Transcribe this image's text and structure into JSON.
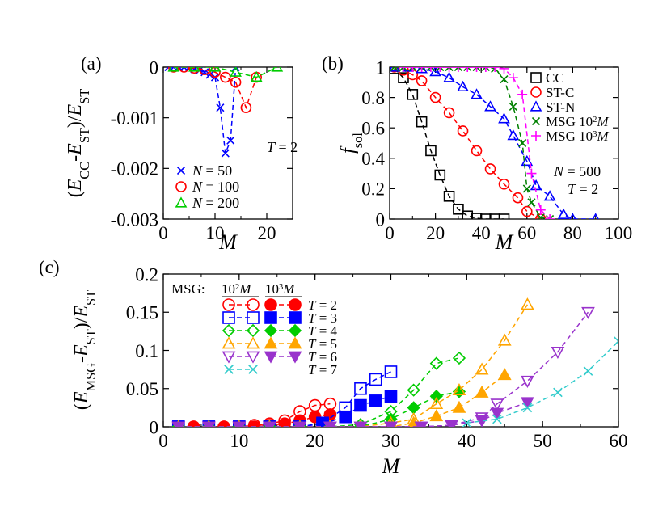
{
  "colors": {
    "black": "#000000",
    "red": "#ff0000",
    "blue": "#0000ff",
    "green": "#00cc00",
    "magenta": "#ff00ff",
    "darkgreen": "#008000",
    "orange": "#ffa500",
    "purple": "#9933cc",
    "cyan": "#33cccc"
  },
  "chart_data": [
    {
      "id": "a",
      "type": "line",
      "panel_label": "(a)",
      "xlabel": "M",
      "ylabel": {
        "open": "(",
        "e1": "E",
        "s1": "CC",
        "mid": "-",
        "e2": "E",
        "s2": "ST",
        "close": ")/",
        "e3": "E",
        "s3": "ST"
      },
      "xlim": [
        0,
        25
      ],
      "ylim": [
        -0.003,
        0
      ],
      "xticks": [
        0,
        10,
        20
      ],
      "xtick_labels": [
        "0",
        "10",
        "20"
      ],
      "yticks": [
        0,
        -0.001,
        -0.002,
        -0.003
      ],
      "ytick_labels": [
        "0",
        "-0.001",
        "-0.002",
        "-0.003"
      ],
      "annotation": {
        "t": "T",
        "rest": " = 2"
      },
      "series": [
        {
          "name": "N = 50",
          "label_sym": "N",
          "label_val": " = 50",
          "color": "#0000ff",
          "marker": "x",
          "x": [
            1,
            2,
            3,
            4,
            5,
            6,
            7,
            8,
            9,
            10,
            11,
            12,
            13,
            14
          ],
          "y": [
            0,
            0,
            0,
            0,
            0,
            -4e-05,
            -6e-05,
            -0.0001,
            -0.00015,
            -0.0002,
            -0.0008,
            -0.0017,
            -0.00145,
            0
          ]
        },
        {
          "name": "N = 100",
          "label_sym": "N",
          "label_val": " = 100",
          "color": "#ff0000",
          "marker": "circle",
          "x": [
            2,
            4,
            6,
            8,
            10,
            12,
            14,
            16,
            18
          ],
          "y": [
            0,
            0,
            -2e-05,
            -5e-05,
            -0.0001,
            -0.0002,
            -0.0003,
            -0.0008,
            -0.0002
          ]
        },
        {
          "name": "N = 200",
          "label_sym": "N",
          "label_val": " = 200",
          "color": "#00cc00",
          "marker": "triangle",
          "x": [
            2,
            6,
            10,
            14,
            18,
            22
          ],
          "y": [
            0,
            0,
            0,
            -0.0001,
            -0.0002,
            0
          ]
        }
      ]
    },
    {
      "id": "b",
      "type": "line",
      "panel_label": "(b)",
      "xlabel": "M",
      "ylabel": {
        "f": "f",
        "sub": "sol"
      },
      "xlim": [
        0,
        100
      ],
      "ylim": [
        0,
        1
      ],
      "xticks": [
        0,
        20,
        40,
        60,
        80,
        100
      ],
      "xtick_labels": [
        "0",
        "20",
        "40",
        "60",
        "80",
        "100"
      ],
      "yticks": [
        0,
        0.2,
        0.4,
        0.6,
        0.8,
        1
      ],
      "ytick_labels": [
        "0",
        "0.2",
        "0.4",
        "0.6",
        "0.8",
        "1"
      ],
      "annotation": {
        "n": "N",
        "n_rest": " = 500",
        "t": "T",
        "t_rest": " = 2"
      },
      "series": [
        {
          "name": "CC",
          "color": "#000000",
          "marker": "square",
          "x": [
            2,
            6,
            10,
            14,
            18,
            22,
            26,
            30,
            34,
            38,
            42,
            46,
            50
          ],
          "y": [
            0.99,
            0.93,
            0.82,
            0.64,
            0.45,
            0.29,
            0.15,
            0.065,
            0.02,
            0.005,
            0,
            0,
            0
          ]
        },
        {
          "name": "ST-C",
          "color": "#ff0000",
          "marker": "circle",
          "x": [
            2,
            6,
            10,
            14,
            20,
            26,
            32,
            38,
            44,
            50,
            56,
            60,
            66
          ],
          "y": [
            1,
            0.98,
            0.95,
            0.91,
            0.8,
            0.7,
            0.58,
            0.45,
            0.33,
            0.23,
            0.14,
            0.05,
            0
          ]
        },
        {
          "name": "ST-N",
          "color": "#0000ff",
          "marker": "triangle",
          "x": [
            2,
            8,
            14,
            20,
            26,
            32,
            38,
            44,
            50,
            54,
            60,
            64,
            70,
            76,
            80,
            90
          ],
          "y": [
            1,
            1,
            0.99,
            0.97,
            0.93,
            0.87,
            0.82,
            0.74,
            0.66,
            0.55,
            0.38,
            0.22,
            0.15,
            0.03,
            0,
            0
          ]
        },
        {
          "name": "MSG 10^2 M",
          "label_pre": "MSG 10",
          "label_sup": "2",
          "label_m": "M",
          "color": "#008000",
          "marker": "x",
          "x": [
            2,
            6,
            10,
            14,
            18,
            22,
            26,
            30,
            34,
            38,
            42,
            46,
            50,
            54,
            58,
            60,
            62,
            66,
            70
          ],
          "y": [
            1,
            1,
            1,
            1,
            1,
            1,
            1,
            1,
            1,
            1,
            1,
            0.99,
            0.92,
            0.74,
            0.5,
            0.2,
            0.11,
            0.01,
            0
          ]
        },
        {
          "name": "MSG 10^3 M",
          "label_pre": "MSG 10",
          "label_sup": "3",
          "label_m": "M",
          "color": "#ff00ff",
          "marker": "plus",
          "x": [
            6,
            10,
            14,
            18,
            22,
            26,
            30,
            34,
            38,
            42,
            46,
            50,
            54,
            58,
            62,
            66,
            70
          ],
          "y": [
            1,
            1,
            1,
            1,
            1,
            1,
            1,
            1,
            1,
            1,
            1,
            0.99,
            0.93,
            0.82,
            0.3,
            0.06,
            0
          ]
        }
      ]
    },
    {
      "id": "c",
      "type": "line",
      "panel_label": "(c)",
      "xlabel": "M",
      "ylabel": {
        "open": "(",
        "e1": "E",
        "s1": "MSG",
        "mid": "-",
        "e2": "E",
        "s2": "ST",
        "close": ")/",
        "e3": "E",
        "s3": "ST"
      },
      "xlim": [
        0,
        60
      ],
      "ylim": [
        0,
        0.2
      ],
      "xticks": [
        0,
        10,
        20,
        30,
        40,
        50,
        60
      ],
      "xtick_labels": [
        "0",
        "10",
        "20",
        "30",
        "40",
        "50",
        "60"
      ],
      "yticks": [
        0,
        0.05,
        0.1,
        0.15,
        0.2
      ],
      "ytick_labels": [
        "0",
        "0.05",
        "0.1",
        "0.15",
        "0.2"
      ],
      "legend": {
        "title": "MSG:",
        "col1_pre": "10",
        "col1_sup": "2",
        "col1_m": "M",
        "col2_pre": "10",
        "col2_sup": "3",
        "col2_m": "M"
      },
      "series": [
        {
          "name": "T = 2, 10^2 M",
          "row": 0,
          "label_sym": "T",
          "label_val": " = 2",
          "color": "#ff0000",
          "marker": "circle",
          "filled": false,
          "x": [
            2,
            4,
            6,
            8,
            10,
            12,
            14,
            16,
            18,
            20,
            22
          ],
          "y": [
            0,
            0,
            0,
            0,
            0,
            0.002,
            0.004,
            0.008,
            0.02,
            0.028,
            0.03
          ]
        },
        {
          "name": "T = 2, 10^3 M",
          "row": 0,
          "color": "#ff0000",
          "marker": "circle",
          "filled": true,
          "x": [
            2,
            4,
            6,
            8,
            10,
            12,
            14,
            16,
            18,
            20,
            22
          ],
          "y": [
            0,
            0,
            0,
            0,
            0,
            0,
            0.002,
            0.004,
            0.008,
            0.013,
            0.016
          ]
        },
        {
          "name": "T = 3, 10^2 M",
          "row": 1,
          "label_sym": "T",
          "label_val": " = 3",
          "color": "#0000ff",
          "marker": "square",
          "filled": false,
          "x": [
            2,
            6,
            10,
            14,
            18,
            21,
            24,
            26,
            28,
            30
          ],
          "y": [
            0,
            0,
            0,
            0,
            0,
            0.005,
            0.025,
            0.05,
            0.062,
            0.072
          ]
        },
        {
          "name": "T = 3, 10^3 M",
          "row": 1,
          "color": "#0000ff",
          "marker": "square",
          "filled": true,
          "x": [
            2,
            6,
            10,
            14,
            18,
            21,
            24,
            26,
            28,
            30
          ],
          "y": [
            0,
            0,
            0,
            0,
            0,
            0.004,
            0.013,
            0.028,
            0.034,
            0.04
          ]
        },
        {
          "name": "T = 4, 10^2 M",
          "row": 2,
          "label_sym": "T",
          "label_val": " = 4",
          "color": "#00cc00",
          "marker": "diamond",
          "filled": false,
          "x": [
            2,
            6,
            10,
            14,
            18,
            22,
            26,
            30,
            33,
            36,
            39
          ],
          "y": [
            0,
            0,
            0,
            0,
            0,
            0,
            0.003,
            0.02,
            0.048,
            0.083,
            0.09
          ]
        },
        {
          "name": "T = 4, 10^3 M",
          "row": 2,
          "color": "#00cc00",
          "marker": "diamond",
          "filled": true,
          "x": [
            2,
            6,
            10,
            14,
            18,
            22,
            26,
            30,
            33,
            36,
            39
          ],
          "y": [
            0,
            0,
            0,
            0,
            0,
            0,
            0,
            0.01,
            0.025,
            0.04,
            0.046
          ]
        },
        {
          "name": "T = 5, 10^2 M",
          "row": 3,
          "label_sym": "T",
          "label_val": " = 5",
          "color": "#ffa500",
          "marker": "triangle",
          "filled": false,
          "x": [
            2,
            6,
            10,
            14,
            18,
            22,
            26,
            30,
            33,
            36,
            39,
            42,
            45,
            48
          ],
          "y": [
            0,
            0,
            0,
            0,
            0,
            0,
            0,
            0.005,
            0.01,
            0.03,
            0.048,
            0.075,
            0.113,
            0.16
          ]
        },
        {
          "name": "T = 5, 10^3 M",
          "row": 3,
          "color": "#ffa500",
          "marker": "triangle",
          "filled": true,
          "x": [
            2,
            6,
            10,
            14,
            18,
            22,
            26,
            30,
            33,
            36,
            39,
            42,
            45
          ],
          "y": [
            0,
            0,
            0,
            0,
            0,
            0,
            0,
            0,
            0.005,
            0.014,
            0.025,
            0.045,
            0.068
          ]
        },
        {
          "name": "T = 6, 10^2 M",
          "row": 4,
          "label_sym": "T",
          "label_val": " = 6",
          "color": "#9933cc",
          "marker": "triangle-down",
          "filled": false,
          "x": [
            2,
            6,
            10,
            14,
            18,
            22,
            26,
            30,
            34,
            38,
            42,
            44,
            48,
            52,
            56
          ],
          "y": [
            0,
            0,
            0,
            0,
            0,
            0,
            0,
            0,
            0,
            0.002,
            0.012,
            0.03,
            0.06,
            0.098,
            0.15
          ]
        },
        {
          "name": "T = 6, 10^3 M",
          "row": 4,
          "color": "#9933cc",
          "marker": "triangle-down",
          "filled": true,
          "x": [
            2,
            6,
            10,
            14,
            18,
            22,
            26,
            30,
            34,
            38,
            42,
            44,
            48
          ],
          "y": [
            0,
            0,
            0,
            0,
            0,
            0,
            0,
            0,
            0,
            0.002,
            0.008,
            0.018,
            0.032
          ]
        },
        {
          "name": "T = 7, 10^2 M",
          "row": 5,
          "label_sym": "T",
          "label_val": " = 7",
          "color": "#33cccc",
          "marker": "x",
          "filled": false,
          "x": [
            40,
            44,
            48,
            52,
            56,
            60
          ],
          "y": [
            0.005,
            0.01,
            0.025,
            0.045,
            0.073,
            0.112
          ]
        }
      ]
    }
  ]
}
